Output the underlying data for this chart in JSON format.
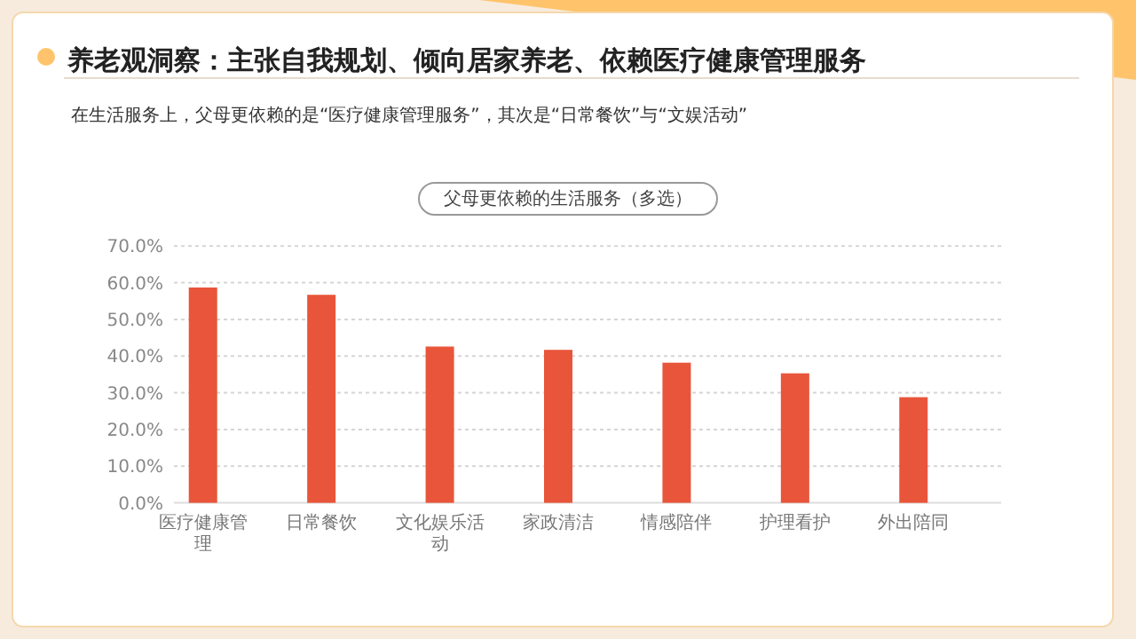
{
  "chart_data": {
    "type": "bar",
    "title": "养老观洞察：主张自我规划、倾向居家养老、依赖医疗健康管理服务",
    "subtitle": "在生活服务上，父母更依赖的是“医疗健康管理服务”，其次是“日常餐饮”与“文娱活动”",
    "annotations": [
      "父母更依赖的生活服务（多选）"
    ],
    "categories": [
      "医疗健康管理",
      "日常餐饮",
      "文化娱乐活动",
      "家政清洁",
      "情感陪伴",
      "护理看护",
      "外出陪同"
    ],
    "values": [
      58.7,
      56.7,
      42.6,
      41.7,
      38.2,
      35.3,
      28.8
    ],
    "color": "#e8553a",
    "ylim": [
      0,
      70
    ],
    "yticks": [
      {
        "value": 0,
        "label": "0.0%"
      },
      {
        "value": 10,
        "label": "10.0%"
      },
      {
        "value": 20,
        "label": "20.0%"
      },
      {
        "value": 30,
        "label": "30.0%"
      },
      {
        "value": 40,
        "label": "40.0%"
      },
      {
        "value": 50,
        "label": "50.0%"
      },
      {
        "value": 60,
        "label": "60.0%"
      },
      {
        "value": 70,
        "label": "70.0%"
      }
    ],
    "grid": "y"
  }
}
